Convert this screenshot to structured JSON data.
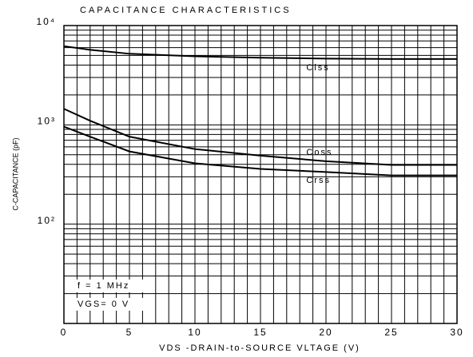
{
  "chart_data": {
    "type": "line",
    "title": "CAPACITANCE CHARACTERISTICS",
    "xlabel": "VDS -DRAIN-to-SOURCE VLTAGE (V)",
    "ylabel": "C-CAPACITANCE (pF)",
    "log_y": true,
    "grid": true,
    "x": [
      0,
      2,
      5,
      10,
      15,
      20,
      25,
      30
    ],
    "series": [
      {
        "name": "Ciss",
        "color": "#000000",
        "values": [
          6200,
          5700,
          5200,
          4900,
          4750,
          4650,
          4600,
          4600
        ]
      },
      {
        "name": "Coss",
        "color": "#000000",
        "values": [
          1450,
          1100,
          760,
          570,
          490,
          430,
          395,
          395
        ]
      },
      {
        "name": "Crss",
        "color": "#000000",
        "values": [
          960,
          760,
          540,
          410,
          360,
          335,
          310,
          310
        ]
      }
    ],
    "annotations": [
      "f = 1 MHz",
      "VGS= 0 V"
    ],
    "xlim": [
      0,
      30
    ],
    "xticks": [
      0,
      5,
      10,
      15,
      20,
      25,
      30
    ],
    "xminorticks": [
      1,
      2,
      3,
      4,
      6,
      7,
      8,
      9,
      11,
      12,
      13,
      14,
      16,
      17,
      18,
      19,
      21,
      22,
      23,
      24,
      26,
      27,
      28,
      29
    ],
    "ylim": [
      10,
      10000
    ],
    "yticks": [
      {
        "value": 100,
        "label": "10²"
      },
      {
        "value": 1000,
        "label": "10³"
      },
      {
        "value": 10000,
        "label": "10⁴"
      }
    ],
    "yminorticks": [
      20,
      30,
      40,
      50,
      60,
      70,
      80,
      90,
      200,
      300,
      400,
      500,
      600,
      700,
      800,
      900,
      2000,
      3000,
      4000,
      5000,
      6000,
      7000,
      8000,
      9000
    ]
  }
}
